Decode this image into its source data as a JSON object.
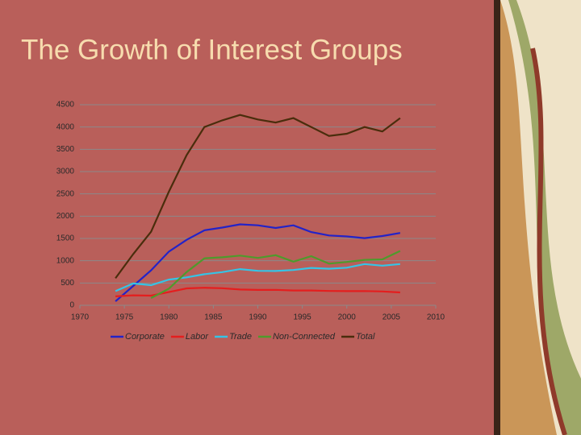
{
  "chart_data": {
    "type": "line",
    "title": "The Growth of Interest Groups",
    "x": [
      1974,
      1976,
      1978,
      1980,
      1982,
      1984,
      1986,
      1988,
      1990,
      1992,
      1994,
      1996,
      1998,
      2000,
      2002,
      2004,
      2006
    ],
    "series": [
      {
        "name": "Corporate",
        "color": "#2323c8",
        "values": [
          89,
          433,
          785,
          1206,
          1469,
          1682,
          1744,
          1816,
          1795,
          1735,
          1795,
          1642,
          1567,
          1545,
          1508,
          1555,
          1622
        ]
      },
      {
        "name": "Labor",
        "color": "#e41e1e",
        "values": [
          201,
          224,
          217,
          297,
          380,
          394,
          384,
          354,
          346,
          347,
          333,
          332,
          321,
          318,
          320,
          310,
          290
        ]
      },
      {
        "name": "Trade",
        "color": "#35c4e6",
        "values": [
          318,
          489,
          451,
          576,
          628,
          698,
          745,
          812,
          774,
          770,
          792,
          838,
          821,
          844,
          926,
          890,
          925
        ]
      },
      {
        "name": "Non-Connected",
        "color": "#4f9a2c",
        "values": [
          null,
          null,
          162,
          374,
          746,
          1053,
          1077,
          1115,
          1062,
          1125,
          980,
          1103,
          935,
          972,
          1019,
          1030,
          1220
        ]
      },
      {
        "name": "Total",
        "color": "#4a2d0c",
        "values": [
          608,
          1150,
          1650,
          2550,
          3370,
          4000,
          4150,
          4270,
          4170,
          4100,
          4200,
          4000,
          3800,
          3850,
          4000,
          3900,
          4200
        ]
      }
    ],
    "xlim": [
      1970,
      2010
    ],
    "xticks": [
      1970,
      1975,
      1980,
      1985,
      1990,
      1995,
      2000,
      2005,
      2010
    ],
    "ylim": [
      0,
      4500
    ],
    "yticks": [
      0,
      500,
      1000,
      1500,
      2000,
      2500,
      3000,
      3500,
      4000,
      4500
    ],
    "grid": true
  }
}
